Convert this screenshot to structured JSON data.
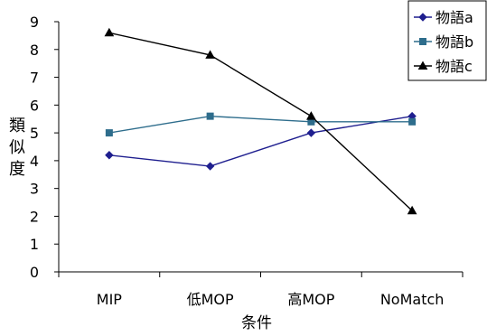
{
  "chart_data": {
    "type": "line",
    "categories": [
      "MIP",
      "低MOP",
      "高MOP",
      "NoMatch"
    ],
    "xlabel": "条件",
    "ylabel": "類似度",
    "ylim": [
      0,
      9
    ],
    "yticks": [
      0,
      1,
      2,
      3,
      4,
      5,
      6,
      7,
      8,
      9
    ],
    "grid": false,
    "legend_position": "top-right",
    "series": [
      {
        "name": "物語a",
        "values": [
          4.2,
          3.8,
          5.0,
          5.6
        ],
        "color": "#1f1f8f",
        "marker": "diamond"
      },
      {
        "name": "物語b",
        "values": [
          5.0,
          5.6,
          5.4,
          5.4
        ],
        "color": "#2e6d8c",
        "marker": "square"
      },
      {
        "name": "物語c",
        "values": [
          8.6,
          7.8,
          5.6,
          2.2
        ],
        "color": "#000000",
        "marker": "triangle"
      }
    ]
  }
}
